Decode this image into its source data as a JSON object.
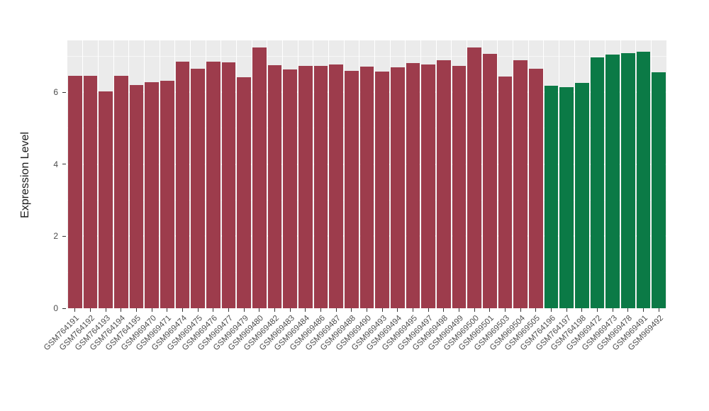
{
  "chart_data": {
    "type": "bar",
    "title": "",
    "xlabel": "",
    "ylabel": "Expression Level",
    "ylim": [
      0,
      7.44
    ],
    "yticks": [
      0,
      2,
      4,
      6
    ],
    "yticks_minor": [
      1,
      3,
      5,
      7
    ],
    "legend": "none",
    "panel_background": "#EBEBEB",
    "grid_color": "#FFFFFF",
    "group_colors": {
      "group1": "#9d3c4c",
      "group2": "#0b7a46"
    },
    "categories": [
      "GSM764191",
      "GSM764192",
      "GSM764193",
      "GSM764194",
      "GSM764195",
      "GSM969470",
      "GSM969471",
      "GSM969474",
      "GSM969475",
      "GSM969476",
      "GSM969477",
      "GSM969479",
      "GSM969480",
      "GSM969482",
      "GSM969483",
      "GSM969484",
      "GSM969486",
      "GSM969487",
      "GSM969488",
      "GSM969490",
      "GSM969493",
      "GSM969494",
      "GSM969495",
      "GSM969497",
      "GSM969498",
      "GSM969499",
      "GSM969500",
      "GSM969501",
      "GSM969503",
      "GSM969504",
      "GSM969505",
      "GSM764196",
      "GSM764197",
      "GSM764198",
      "GSM969472",
      "GSM969473",
      "GSM969478",
      "GSM969491",
      "GSM969492"
    ],
    "series": [
      {
        "name": "Expression Level",
        "values": [
          6.45,
          6.45,
          6.02,
          6.45,
          6.2,
          6.28,
          6.32,
          6.85,
          6.65,
          6.85,
          6.83,
          6.42,
          7.25,
          6.76,
          6.63,
          6.73,
          6.73,
          6.77,
          6.6,
          6.71,
          6.58,
          6.7,
          6.82,
          6.78,
          6.88,
          6.73,
          7.25,
          7.06,
          6.43,
          6.89,
          6.65,
          6.18,
          6.15,
          6.25,
          6.96,
          7.05,
          7.08,
          7.12,
          6.56
        ]
      }
    ],
    "groups": [
      "group1",
      "group1",
      "group1",
      "group1",
      "group1",
      "group1",
      "group1",
      "group1",
      "group1",
      "group1",
      "group1",
      "group1",
      "group1",
      "group1",
      "group1",
      "group1",
      "group1",
      "group1",
      "group1",
      "group1",
      "group1",
      "group1",
      "group1",
      "group1",
      "group1",
      "group1",
      "group1",
      "group1",
      "group1",
      "group1",
      "group1",
      "group2",
      "group2",
      "group2",
      "group2",
      "group2",
      "group2",
      "group2",
      "group2"
    ]
  }
}
